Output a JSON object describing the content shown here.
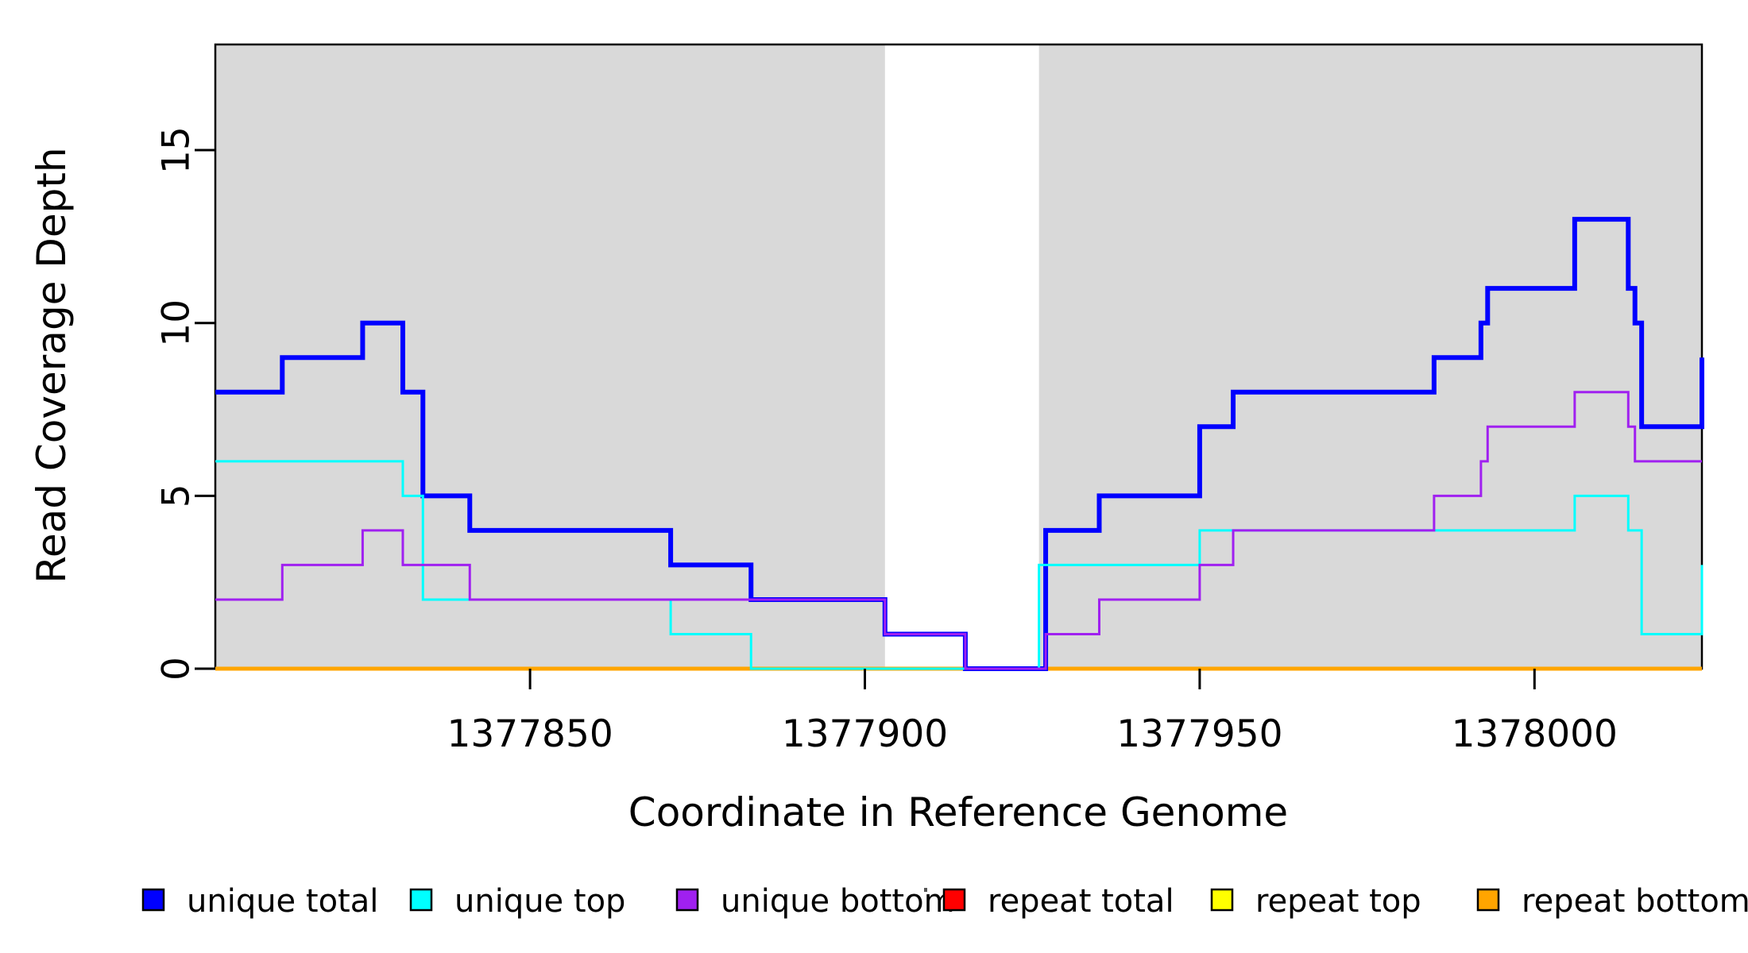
{
  "figure": {
    "y_axis_title": "Read Coverage Depth",
    "x_axis_title": "Coordinate in Reference Genome"
  },
  "axes": {
    "xlim": [
      1377803,
      1378025
    ],
    "ylim": [
      0,
      18.05
    ],
    "x_ticks": [
      {
        "value": 1377850,
        "label": "1377850"
      },
      {
        "value": 1377900,
        "label": "1377900"
      },
      {
        "value": 1377950,
        "label": "1377950"
      },
      {
        "value": 1378000,
        "label": "1378000"
      }
    ],
    "y_ticks": [
      {
        "value": 0,
        "label": "0"
      },
      {
        "value": 5,
        "label": "5"
      },
      {
        "value": 10,
        "label": "10"
      },
      {
        "value": 15,
        "label": "15"
      }
    ]
  },
  "highlight_regions": [
    {
      "start": 1377803,
      "end": 1377903,
      "color": "#d9d9d9"
    },
    {
      "start": 1377926,
      "end": 1378025,
      "color": "#d9d9d9"
    }
  ],
  "chart_data": {
    "type": "step-line",
    "title": "",
    "xlabel": "Coordinate in Reference Genome",
    "ylabel": "Read Coverage Depth",
    "x_unit": "reference genome coordinate (bp)",
    "grid": false,
    "legend_position": "bottom-horizontal",
    "series": [
      {
        "name": "repeat-total",
        "label": "repeat total",
        "color": "#FF0000",
        "width": 5,
        "points": [
          [
            1377803,
            0
          ]
        ]
      },
      {
        "name": "repeat-top",
        "label": "repeat top",
        "color": "#FFFF00",
        "width": 5,
        "points": [
          [
            1377803,
            0
          ]
        ]
      },
      {
        "name": "repeat-bottom",
        "label": "repeat bottom",
        "color": "#FFA500",
        "width": 5,
        "points": [
          [
            1377803,
            0
          ]
        ]
      },
      {
        "name": "unique-total",
        "label": "unique total",
        "color": "#0000FF",
        "width": 6,
        "points": [
          [
            1377803,
            8
          ],
          [
            1377813,
            9
          ],
          [
            1377825,
            10
          ],
          [
            1377831,
            8
          ],
          [
            1377834,
            5
          ],
          [
            1377841,
            4
          ],
          [
            1377871,
            3
          ],
          [
            1377883,
            2
          ],
          [
            1377903,
            1
          ],
          [
            1377915,
            0
          ],
          [
            1377927,
            4
          ],
          [
            1377935,
            5
          ],
          [
            1377950,
            7
          ],
          [
            1377955,
            8
          ],
          [
            1377985,
            9
          ],
          [
            1377992,
            10
          ],
          [
            1377993,
            11
          ],
          [
            1378006,
            13
          ],
          [
            1378014,
            11
          ],
          [
            1378015,
            10
          ],
          [
            1378016,
            7
          ],
          [
            1378025,
            9
          ]
        ]
      },
      {
        "name": "unique-top",
        "label": "unique top",
        "color": "#00FFFF",
        "width": 3,
        "points": [
          [
            1377803,
            6
          ],
          [
            1377831,
            5
          ],
          [
            1377834,
            2
          ],
          [
            1377871,
            1
          ],
          [
            1377883,
            0
          ],
          [
            1377926,
            3
          ],
          [
            1377950,
            4
          ],
          [
            1378006,
            5
          ],
          [
            1378014,
            4
          ],
          [
            1378016,
            1
          ],
          [
            1378025,
            3
          ]
        ]
      },
      {
        "name": "unique-bottom",
        "label": "unique bottom",
        "color": "#A020F0",
        "width": 3,
        "points": [
          [
            1377803,
            2
          ],
          [
            1377813,
            3
          ],
          [
            1377825,
            4
          ],
          [
            1377831,
            3
          ],
          [
            1377841,
            2
          ],
          [
            1377903,
            1
          ],
          [
            1377915,
            0
          ],
          [
            1377927,
            1
          ],
          [
            1377935,
            2
          ],
          [
            1377950,
            3
          ],
          [
            1377955,
            4
          ],
          [
            1377985,
            5
          ],
          [
            1377992,
            6
          ],
          [
            1377993,
            7
          ],
          [
            1378006,
            8
          ],
          [
            1378014,
            7
          ],
          [
            1378015,
            6
          ]
        ]
      }
    ]
  },
  "legend": {
    "items": [
      {
        "label": "unique total",
        "color": "#0000FF"
      },
      {
        "label": "unique top",
        "color": "#00FFFF"
      },
      {
        "label": "unique bottom",
        "color": "#A020F0"
      },
      {
        "label": "repeat total",
        "color": "#FF0000"
      },
      {
        "label": "repeat top",
        "color": "#FFFF00"
      },
      {
        "label": "repeat bottom",
        "color": "#FFA500"
      }
    ]
  }
}
